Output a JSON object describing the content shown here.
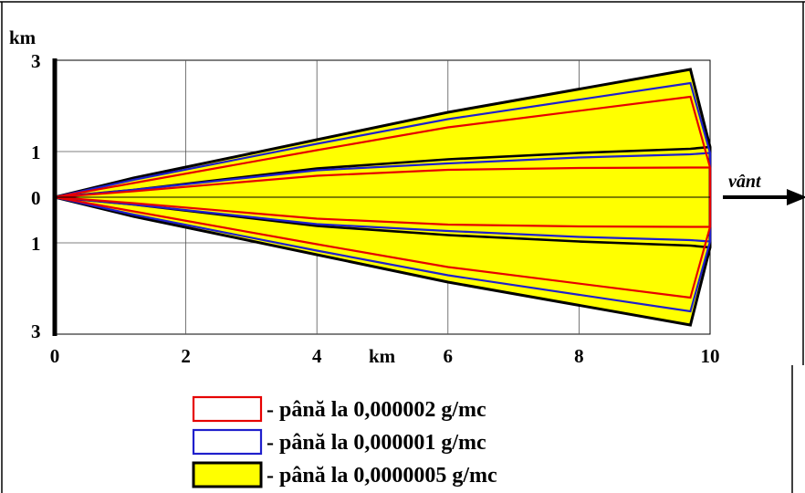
{
  "chart_data": {
    "type": "area",
    "title": "",
    "xlabel": "km",
    "ylabel": "km",
    "xlim": [
      0,
      10
    ],
    "x_ticks": [
      "0",
      "2",
      "4",
      "6",
      "8",
      "10"
    ],
    "y_ticks": [
      "3",
      "1",
      "0",
      "1",
      "3"
    ],
    "wind_label": "vânt",
    "grid": true,
    "series": [
      {
        "name": "până la 0,0000005 g/mc",
        "color_fill": "#ffff00",
        "color_edge": "#000000",
        "outer": [
          [
            0,
            0
          ],
          [
            1.2,
            0.42
          ],
          [
            4,
            1.26
          ],
          [
            6,
            1.86
          ],
          [
            9.7,
            2.8
          ],
          [
            10,
            1.1
          ]
        ],
        "inner": [
          [
            0,
            0
          ],
          [
            1.2,
            0.16
          ],
          [
            4,
            0.63
          ],
          [
            6,
            0.83
          ],
          [
            8,
            0.97
          ],
          [
            9.7,
            1.06
          ],
          [
            10,
            1.1
          ]
        ]
      },
      {
        "name": "până la 0,000001 g/mc",
        "color_edge": "#1f1fcc",
        "outer": [
          [
            0,
            0
          ],
          [
            1.2,
            0.38
          ],
          [
            4,
            1.17
          ],
          [
            6,
            1.71
          ],
          [
            9.7,
            2.5
          ],
          [
            10,
            0.97
          ]
        ],
        "inner": [
          [
            0,
            0
          ],
          [
            1.2,
            0.16
          ],
          [
            4,
            0.59
          ],
          [
            6,
            0.74
          ],
          [
            8,
            0.87
          ],
          [
            9.7,
            0.94
          ],
          [
            10,
            0.97
          ]
        ]
      },
      {
        "name": "până la 0,000002 g/mc",
        "color_edge": "#e60000",
        "outer": [
          [
            0,
            0
          ],
          [
            1.2,
            0.31
          ],
          [
            4,
            1.03
          ],
          [
            6,
            1.53
          ],
          [
            9.7,
            2.2
          ],
          [
            10,
            0.65
          ]
        ],
        "inner": [
          [
            0,
            0
          ],
          [
            1.2,
            0.13
          ],
          [
            4,
            0.47
          ],
          [
            6,
            0.6
          ],
          [
            8,
            0.64
          ],
          [
            9.7,
            0.65
          ],
          [
            10,
            0.65
          ]
        ]
      }
    ]
  },
  "legend": [
    {
      "text": "- până la 0,000002 g/mc",
      "edge": "#e60000",
      "fill": "#ffffff"
    },
    {
      "text": "- până la 0,000001 g/mc",
      "edge": "#1f1fcc",
      "fill": "#ffffff"
    },
    {
      "text": "- până la 0,0000005 g/mc",
      "edge": "#000000",
      "fill": "#ffff00"
    }
  ]
}
